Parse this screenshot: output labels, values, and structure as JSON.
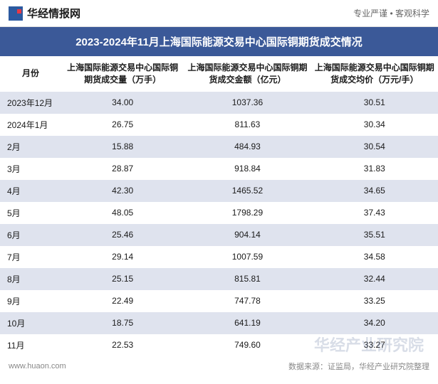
{
  "header": {
    "logo_text": "华经情报网",
    "tagline": "专业严谨 • 客观科学"
  },
  "title": "2023-2024年11月上海国际能源交易中心国际铜期货成交情况",
  "table": {
    "columns": [
      "月份",
      "上海国际能源交易中心国际铜期货成交量（万手）",
      "上海国际能源交易中心国际铜期货成交金额（亿元）",
      "上海国际能源交易中心国际铜期货成交均价（万元/手）"
    ],
    "rows": [
      [
        "2023年12月",
        "34.00",
        "1037.36",
        "30.51"
      ],
      [
        "2024年1月",
        "26.75",
        "811.63",
        "30.34"
      ],
      [
        "2月",
        "15.88",
        "484.93",
        "30.54"
      ],
      [
        "3月",
        "28.87",
        "918.84",
        "31.83"
      ],
      [
        "4月",
        "42.30",
        "1465.52",
        "34.65"
      ],
      [
        "5月",
        "48.05",
        "1798.29",
        "37.43"
      ],
      [
        "6月",
        "25.46",
        "904.14",
        "35.51"
      ],
      [
        "7月",
        "29.14",
        "1007.59",
        "34.58"
      ],
      [
        "8月",
        "25.15",
        "815.81",
        "32.44"
      ],
      [
        "9月",
        "22.49",
        "747.78",
        "33.25"
      ],
      [
        "10月",
        "18.75",
        "641.19",
        "34.20"
      ],
      [
        "11月",
        "22.53",
        "749.60",
        "33.27"
      ]
    ]
  },
  "footer": {
    "website": "www.huaon.com",
    "source": "数据来源：证监局，华经产业研究院整理"
  },
  "watermark": "华经产业研究院",
  "styling": {
    "title_bg": "#3b5998",
    "title_color": "#ffffff",
    "row_odd_bg": "#dfe3ee",
    "row_even_bg": "#ffffff",
    "text_color": "#1a1a1a",
    "footer_color": "#888888",
    "header_font_size": 12,
    "cell_font_size": 12,
    "title_font_size": 15
  }
}
